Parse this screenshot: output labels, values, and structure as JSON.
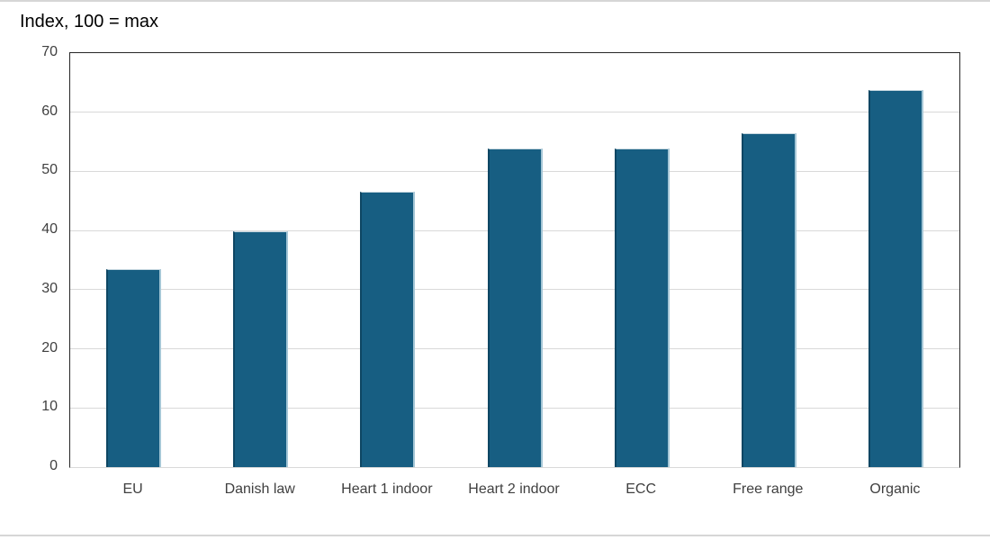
{
  "chart_data": {
    "type": "bar",
    "title": "Index, 100 = max",
    "categories": [
      "EU",
      "Danish law",
      "Heart 1 indoor",
      "Heart 2 indoor",
      "ECC",
      "Free range",
      "Organic"
    ],
    "values": [
      33.5,
      39.8,
      46.5,
      53.8,
      53.8,
      56.5,
      63.8
    ],
    "xlabel": "",
    "ylabel": "",
    "ylim": [
      0,
      70
    ],
    "yticks": [
      0,
      10,
      20,
      30,
      40,
      50,
      60,
      70
    ],
    "grid": "horizontal",
    "legend_position": "none",
    "bar_color": "#175E82",
    "bar_edge_dark": "#0E4663",
    "bar_edge_light": "#A4C6D6",
    "gridline_color": "#D9D9D9",
    "plot_border_color": "#262626",
    "axis_label_color": "#404040",
    "title_color": "#000000",
    "frame_line_color": "#D6D6D6"
  }
}
